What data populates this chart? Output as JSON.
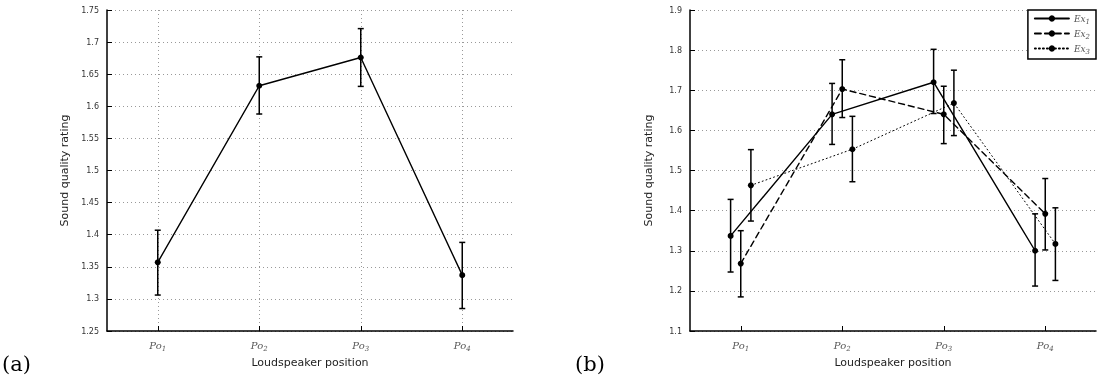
{
  "chart_data": [
    {
      "type": "line",
      "xlabel": "Loudspeaker position",
      "ylabel": "Sound quality rating",
      "annotations": [
        "(a)"
      ],
      "x": [
        1,
        2,
        3,
        4
      ],
      "xlim": [
        0.5,
        4.5
      ],
      "xticks": [
        {
          "value": 1,
          "label": "Po$_{1}$"
        },
        {
          "value": 2,
          "label": "Po$_{2}$"
        },
        {
          "value": 3,
          "label": "Po$_{3}$"
        },
        {
          "value": 4,
          "label": "Po$_{4}$"
        }
      ],
      "ylim": [
        1.25,
        1.75
      ],
      "yticks": [
        1.25,
        1.3,
        1.35,
        1.4,
        1.45,
        1.5,
        1.55,
        1.6,
        1.65,
        1.7,
        1.75
      ],
      "series": [
        {
          "color": "#000000",
          "values": [
            1.357,
            1.632,
            1.676,
            1.337
          ],
          "errors": [
            [
              1.306,
              1.407
            ],
            [
              1.588,
              1.677
            ],
            [
              1.631,
              1.721
            ],
            [
              1.285,
              1.388
            ]
          ]
        }
      ],
      "grid": true,
      "marker": "circle",
      "line_style": "solid",
      "legend": false
    },
    {
      "type": "line",
      "xlabel": "Loudspeaker position",
      "ylabel": "Sound quality rating",
      "annotations": [
        "(b)"
      ],
      "xlim": [
        0.5,
        4.5
      ],
      "xticks": [
        {
          "value": 1,
          "label": "Po$_{1}$"
        },
        {
          "value": 2,
          "label": "Po$_{2}$"
        },
        {
          "value": 3,
          "label": "Po$_{3}$"
        },
        {
          "value": 4,
          "label": "Po$_{4}$"
        }
      ],
      "ylim": [
        1.1,
        1.9
      ],
      "yticks": [
        1.1,
        1.2,
        1.3,
        1.4,
        1.5,
        1.6,
        1.7,
        1.8,
        1.9
      ],
      "series": [
        {
          "name": "Ex$_{1}$",
          "color": "#000000",
          "line_style": "solid",
          "x": [
            0.9,
            1.9,
            2.9,
            3.9
          ],
          "values": [
            1.337,
            1.64,
            1.72,
            1.3
          ],
          "errors": [
            [
              1.247,
              1.428
            ],
            [
              1.565,
              1.717
            ],
            [
              1.642,
              1.802
            ],
            [
              1.212,
              1.392
            ]
          ]
        },
        {
          "name": "Ex$_{2}$",
          "color": "#000000",
          "line_style": "dashed",
          "x": [
            1,
            2,
            3,
            4
          ],
          "values": [
            1.268,
            1.703,
            1.64,
            1.392
          ],
          "errors": [
            [
              1.185,
              1.35
            ],
            [
              1.632,
              1.776
            ],
            [
              1.567,
              1.71
            ],
            [
              1.302,
              1.48
            ]
          ]
        },
        {
          "name": "Ex$_{3}$",
          "color": "#000000",
          "line_style": "dotted",
          "x": [
            1.1,
            2.1,
            3.1,
            4.1
          ],
          "values": [
            1.463,
            1.553,
            1.668,
            1.317
          ],
          "errors": [
            [
              1.374,
              1.552
            ],
            [
              1.472,
              1.635
            ],
            [
              1.587,
              1.75
            ],
            [
              1.226,
              1.407
            ]
          ]
        }
      ],
      "grid": "y",
      "marker": "circle",
      "legend": "top right"
    }
  ]
}
